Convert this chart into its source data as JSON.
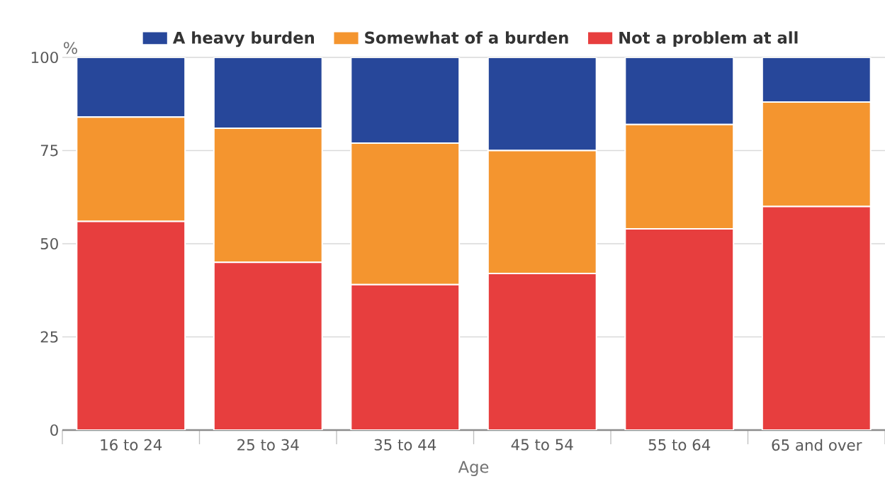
{
  "chart_data": {
    "type": "bar",
    "stacked": true,
    "xlabel": "Age",
    "ylabel": "%",
    "categories": [
      "16 to 24",
      "25 to 34",
      "35 to 44",
      "45 to 54",
      "55 to 64",
      "65 and over"
    ],
    "series": [
      {
        "name": "Not a problem at all",
        "color": "#e73e3e",
        "values": [
          56,
          45,
          39,
          42,
          54,
          60
        ]
      },
      {
        "name": "Somewhat of a burden",
        "color": "#f4952f",
        "values": [
          28,
          36,
          38,
          33,
          28,
          28
        ]
      },
      {
        "name": "A heavy burden",
        "color": "#27479a",
        "values": [
          16,
          19,
          23,
          25,
          18,
          12
        ]
      }
    ],
    "ylim": [
      0,
      100
    ],
    "yticks": [
      0,
      25,
      50,
      75,
      100
    ],
    "grid": "y",
    "legend": "top"
  }
}
